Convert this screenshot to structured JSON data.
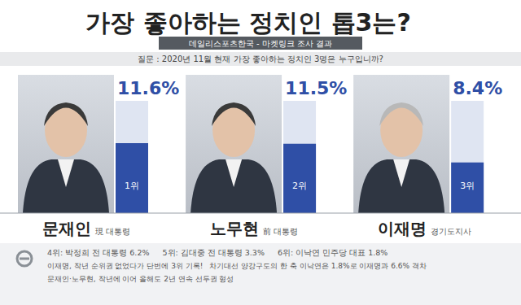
{
  "chart_data": {
    "type": "bar",
    "title": "가장 좋아하는 정치인 톱3는?",
    "subtitle": "데일리스포츠한국 - 마켓링크 조사 결과",
    "question": "질문 : 2020년 11월 현재 가장 좋아하는 정치인 3명은 누구입니까?",
    "categories": [
      "문재인",
      "노무현",
      "이재명"
    ],
    "category_notes": [
      "現 대통령",
      "前 대통령",
      "경기도지사"
    ],
    "rank_labels": [
      "1위",
      "2위",
      "3위"
    ],
    "values": [
      11.6,
      11.5,
      8.4
    ],
    "value_labels": [
      "11.6%",
      "11.5%",
      "8.4%"
    ],
    "data_labels": true,
    "tick_labels": false,
    "color": "#2f4fa6",
    "annotations": [
      "4위: 박정희 전 대통령 6.2%",
      "5위: 김대중 전 대통령 3.3%",
      "6위: 이낙연 민주당 대표 1.8%",
      "이재명, 작년 순위권 없었다가 단번에 3위 기록!",
      "차기대선 양강구도의 한 축 이낙연은 1.8%로  이재명과 6.6% 격차",
      "문재인·노무현, 작년에 이어 올해도 2년 연속 선두권 형성"
    ]
  }
}
